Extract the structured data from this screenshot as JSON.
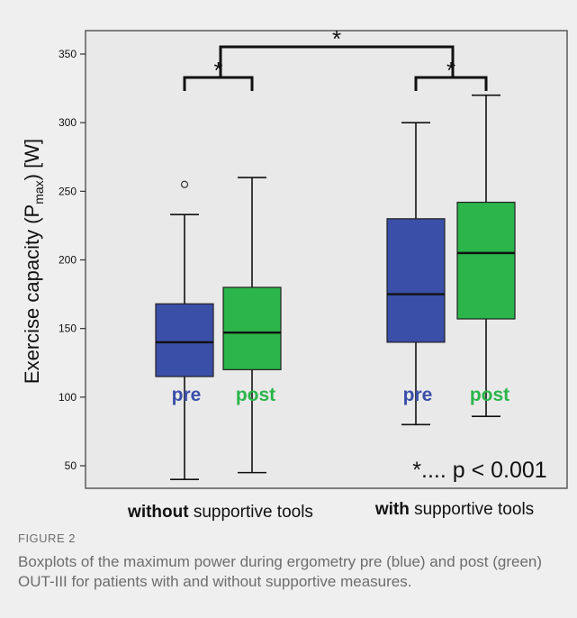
{
  "figure": {
    "label": "FIGURE 2",
    "caption": "Boxplots of the maximum power during ergometry pre (blue) and post (green) OUT-III for patients with and without supportive measures."
  },
  "colors": {
    "pre": "#3a4fa8",
    "post": "#2bb54a",
    "plot_background": "#e9e9e9",
    "card_background": "#efefef"
  },
  "chart_data": {
    "type": "boxplot",
    "ylabel_parts": [
      "Exercise capacity (P",
      "max",
      ") [W]"
    ],
    "ylim": [
      35,
      365
    ],
    "yticks": [
      50,
      100,
      150,
      200,
      250,
      300,
      350
    ],
    "grid": false,
    "groups": [
      {
        "name_bold": "without",
        "name_rest": " supportive tools"
      },
      {
        "name_bold": "with",
        "name_rest": " supportive tools"
      }
    ],
    "boxes": [
      {
        "group": 0,
        "label": "pre",
        "color_key": "pre",
        "whisker_low": 40,
        "q1": 115,
        "median": 140,
        "q3": 168,
        "whisker_high": 233,
        "outliers": [
          255
        ]
      },
      {
        "group": 0,
        "label": "post",
        "color_key": "post",
        "whisker_low": 45,
        "q1": 120,
        "median": 147,
        "q3": 180,
        "whisker_high": 260,
        "outliers": []
      },
      {
        "group": 1,
        "label": "pre",
        "color_key": "pre",
        "whisker_low": 80,
        "q1": 140,
        "median": 175,
        "q3": 230,
        "whisker_high": 300,
        "outliers": []
      },
      {
        "group": 1,
        "label": "post",
        "color_key": "post",
        "whisker_low": 86,
        "q1": 157,
        "median": 205,
        "q3": 242,
        "whisker_high": 320,
        "outliers": []
      }
    ],
    "significance": [
      {
        "between": [
          0,
          1
        ],
        "marker": "*"
      },
      {
        "between": [
          2,
          3
        ],
        "marker": "*"
      },
      {
        "between": [
          "group0",
          "group1"
        ],
        "marker": "*"
      }
    ],
    "annotation": "*.... p < 0.001"
  }
}
